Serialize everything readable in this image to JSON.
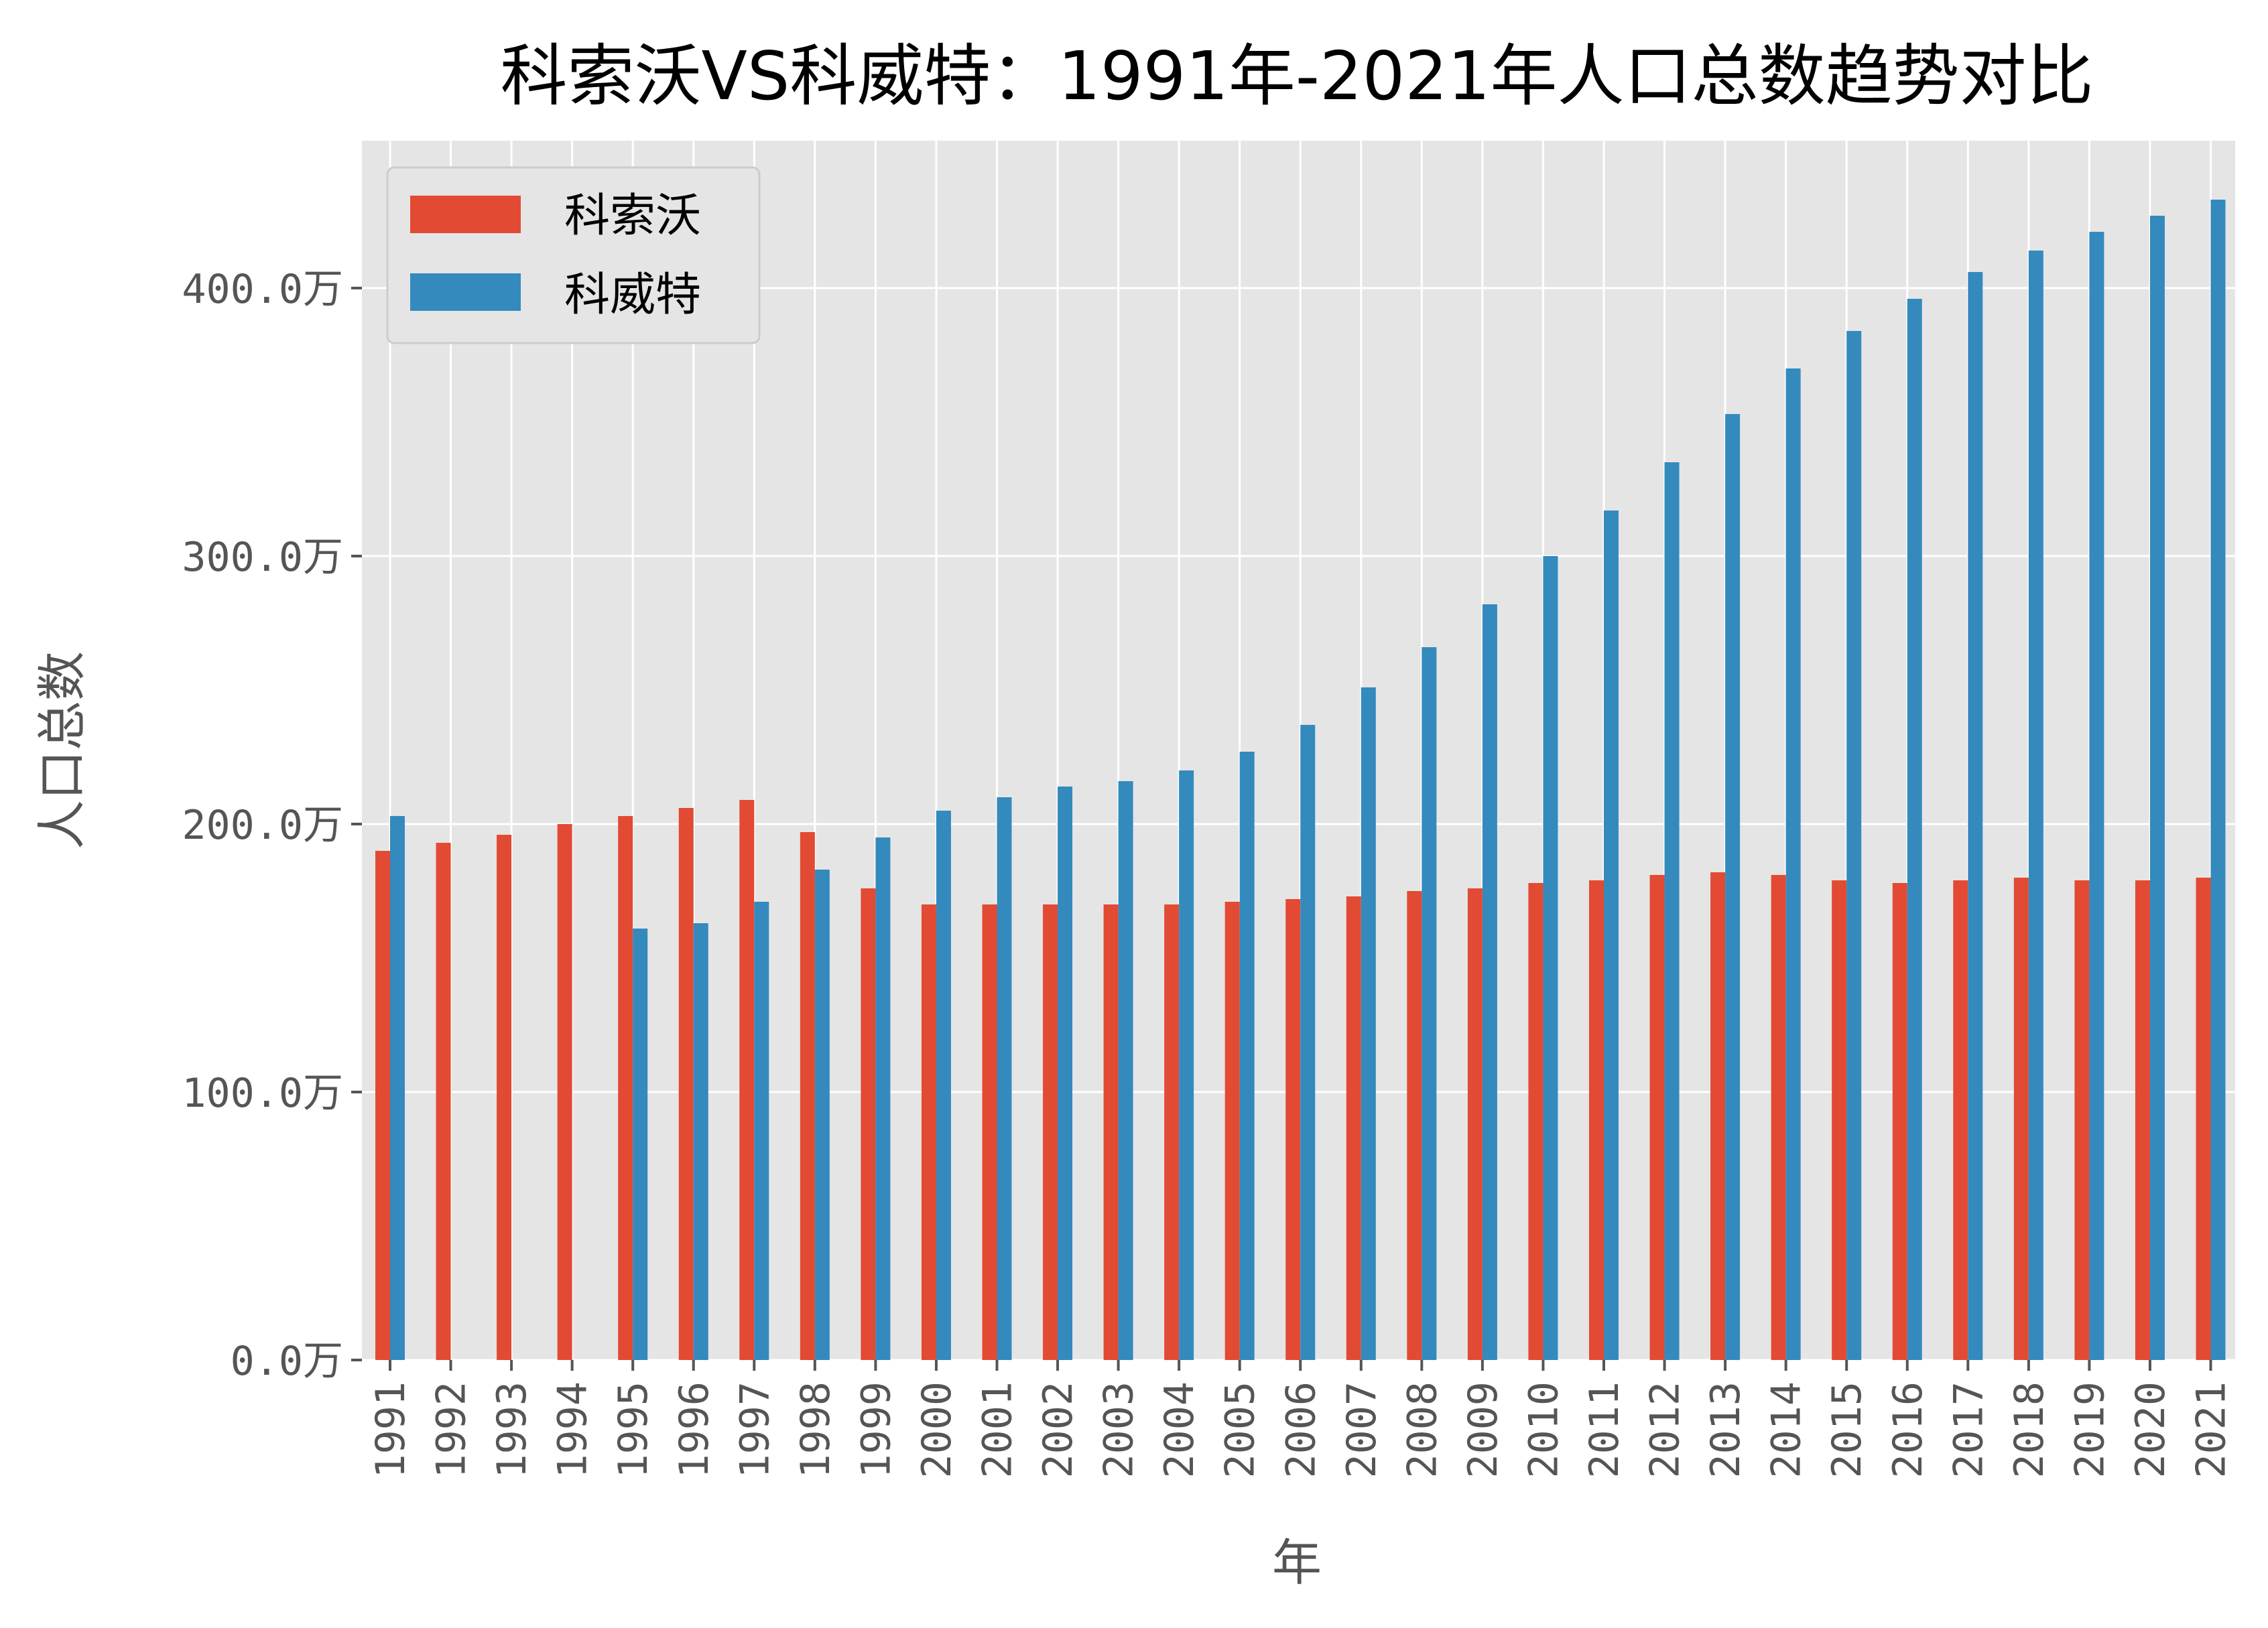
{
  "chart_data": {
    "type": "bar",
    "title": "科索沃VS科威特：1991年-2021年人口总数趋势对比",
    "xlabel": "年",
    "ylabel": "人口总数",
    "ylim": [
      0,
      455
    ],
    "y_unit": "万",
    "yticks": [
      0,
      100,
      200,
      300,
      400
    ],
    "ytick_labels": [
      "0.0万",
      "100.0万",
      "200.0万",
      "300.0万",
      "400.0万"
    ],
    "grid": true,
    "legend_position": "top-left",
    "categories": [
      "1991",
      "1992",
      "1993",
      "1994",
      "1995",
      "1996",
      "1997",
      "1998",
      "1999",
      "2000",
      "2001",
      "2002",
      "2003",
      "2004",
      "2005",
      "2006",
      "2007",
      "2008",
      "2009",
      "2010",
      "2011",
      "2012",
      "2013",
      "2014",
      "2015",
      "2016",
      "2017",
      "2018",
      "2019",
      "2020",
      "2021"
    ],
    "series": [
      {
        "name": "科索沃",
        "color": "#e24a33",
        "values": [
          190,
          193,
          196,
          200,
          203,
          206,
          209,
          197,
          176,
          170,
          170,
          170,
          170,
          170,
          171,
          172,
          173,
          175,
          176,
          178,
          179,
          181,
          182,
          181,
          179,
          178,
          179,
          180,
          179,
          179,
          180
        ]
      },
      {
        "name": "科威特",
        "color": "#348abd",
        "values": [
          203,
          0,
          0,
          0,
          161,
          163,
          171,
          183,
          195,
          205,
          210,
          214,
          216,
          220,
          227,
          237,
          251,
          266,
          282,
          300,
          317,
          335,
          353,
          370,
          384,
          396,
          406,
          414,
          421,
          427,
          433
        ]
      }
    ]
  },
  "colors": {
    "plot_background": "#e5e5e5",
    "grid": "#ffffff"
  }
}
